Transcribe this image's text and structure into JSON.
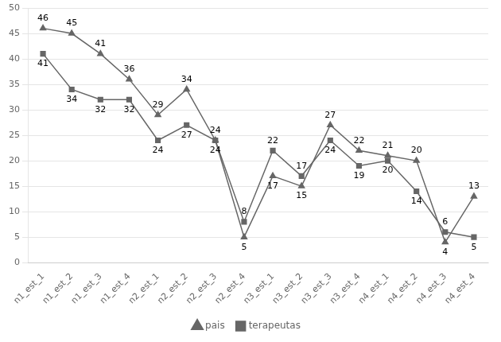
{
  "chart_data": {
    "type": "line",
    "categories": [
      "n1_est_1",
      "n1_est_2",
      "n1_est_3",
      "n1_est_4",
      "n2_est_1",
      "n2_est_2",
      "n2_est_3",
      "n2_est_4",
      "n3_est_1",
      "n3_est_2",
      "n3_est_3",
      "n3_est_4",
      "n4_est_1",
      "n4_est_2",
      "n4_est_3",
      "n4_est_4"
    ],
    "series": [
      {
        "name": "pais",
        "color": "#666666",
        "marker": "triangle",
        "values": [
          46,
          45,
          41,
          36,
          29,
          34,
          24,
          5,
          17,
          15,
          27,
          22,
          21,
          20,
          4,
          13
        ]
      },
      {
        "name": "terapeutas",
        "color": "#666666",
        "marker": "square",
        "values": [
          41,
          34,
          32,
          32,
          24,
          27,
          24,
          8,
          22,
          17,
          24,
          19,
          20,
          14,
          6,
          5
        ]
      }
    ],
    "ylim": [
      0,
      50
    ],
    "yticks": [
      0,
      5,
      10,
      15,
      20,
      25,
      30,
      35,
      40,
      45,
      50
    ],
    "grid": true,
    "legend": "bottom",
    "data_labels": true
  }
}
